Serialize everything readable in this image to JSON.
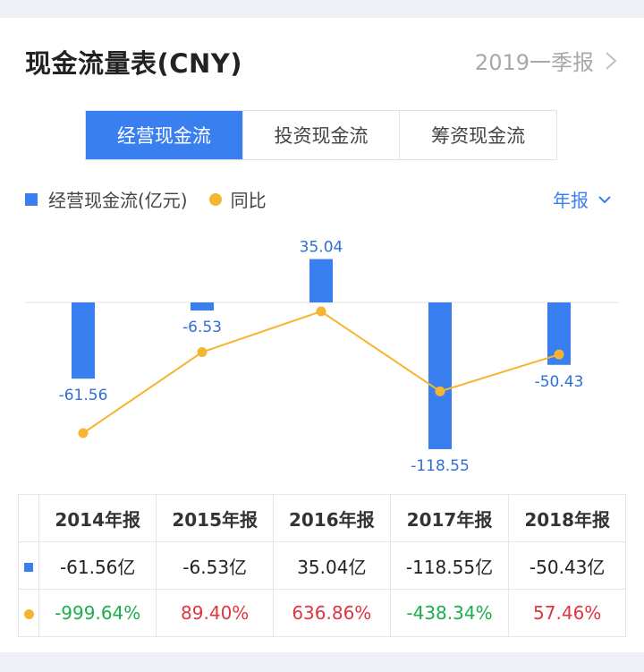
{
  "header": {
    "title": "现金流量表(CNY)",
    "period": "2019一季报"
  },
  "tabs": [
    {
      "label": "经营现金流",
      "active": true
    },
    {
      "label": "投资现金流",
      "active": false
    },
    {
      "label": "筹资现金流",
      "active": false
    }
  ],
  "legend": {
    "series1": "经营现金流(亿元)",
    "series2": "同比"
  },
  "period_selector": "年报",
  "chart_data": {
    "type": "bar",
    "categories": [
      "2014年报",
      "2015年报",
      "2016年报",
      "2017年报",
      "2018年报"
    ],
    "series": [
      {
        "name": "经营现金流(亿元)",
        "type": "bar",
        "values": [
          -61.56,
          -6.53,
          35.04,
          -118.55,
          -50.43
        ],
        "labels": [
          "-61.56",
          "-6.53",
          "35.04",
          "-118.55",
          "-50.43"
        ]
      },
      {
        "name": "同比",
        "type": "line",
        "values": [
          -999.64,
          89.4,
          636.86,
          -438.34,
          57.46
        ]
      }
    ],
    "colors": {
      "bar": "#3a7ff0",
      "line": "#f5b530",
      "positive": "#e0363f",
      "negative": "#1aaf4a"
    }
  },
  "table": {
    "headers": [
      "2014年报",
      "2015年报",
      "2016年报",
      "2017年报",
      "2018年报"
    ],
    "cash_flow": [
      "-61.56亿",
      "-6.53亿",
      "35.04亿",
      "-118.55亿",
      "-50.43亿"
    ],
    "yoy": [
      "-999.64%",
      "89.40%",
      "636.86%",
      "-438.34%",
      "57.46%"
    ]
  }
}
